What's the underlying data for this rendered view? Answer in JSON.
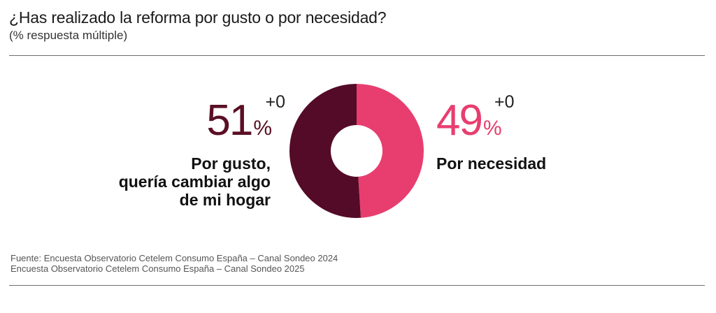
{
  "title": "¿Has realizado la reforma por gusto o por necesidad?",
  "subtitle": "(% respuesta múltiple)",
  "chart_data": {
    "type": "pie",
    "title": "¿Has realizado la reforma por gusto o por necesidad?",
    "subtitle": "(% respuesta múltiple)",
    "donut": true,
    "series": [
      {
        "name": "Por gusto, quería cambiar algo de mi hogar",
        "value": 51,
        "change": "+0",
        "color": "#540b27"
      },
      {
        "name": "Por necesidad",
        "value": 49,
        "change": "+0",
        "color": "#e83e6f"
      }
    ]
  },
  "left": {
    "value": "51",
    "unit": "%",
    "change": "+0",
    "label_lines": [
      "Por gusto,",
      "quería cambiar algo",
      "de mi hogar"
    ]
  },
  "right": {
    "value": "49",
    "unit": "%",
    "change": "+0",
    "label_lines": [
      "Por necesidad"
    ]
  },
  "sources": [
    "Fuente: Encuesta Observatorio Cetelem Consumo España – Canal Sondeo 2024",
    "Encuesta Observatorio Cetelem Consumo España – Canal Sondeo 2025"
  ]
}
